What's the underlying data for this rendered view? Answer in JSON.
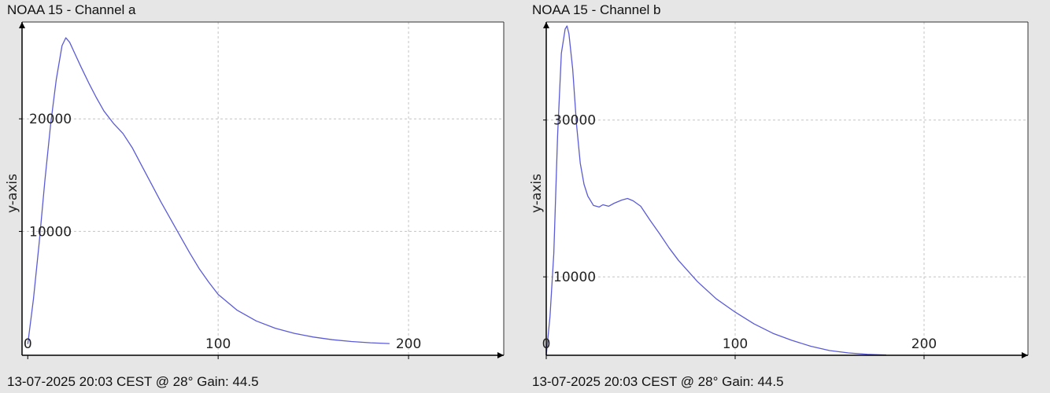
{
  "chart_data": [
    {
      "type": "line",
      "title": "NOAA 15 - Channel a",
      "footer": "13-07-2025 20:03 CEST @ 28° Gain: 44.5",
      "xlabel": "",
      "ylabel": "y-axis",
      "xlim": [
        -3,
        250
      ],
      "ylim": [
        -1000,
        28600
      ],
      "xticks": [
        0,
        100,
        200
      ],
      "yticks": [
        10000,
        20000
      ],
      "grid": true,
      "legend": "none",
      "color": "#5b5bd6",
      "series": [
        {
          "x": [
            0,
            3,
            6,
            9,
            12,
            15,
            18,
            20,
            22,
            25,
            28,
            32,
            36,
            40,
            45,
            50,
            55,
            60,
            65,
            70,
            75,
            80,
            85,
            90,
            95,
            100,
            110,
            120,
            130,
            140,
            150,
            160,
            170,
            180,
            190
          ],
          "y": [
            0,
            4000,
            9000,
            14500,
            19500,
            23500,
            26500,
            27200,
            26800,
            25700,
            24600,
            23200,
            21900,
            20700,
            19600,
            18700,
            17400,
            15800,
            14200,
            12600,
            11100,
            9600,
            8100,
            6700,
            5500,
            4400,
            3000,
            2050,
            1400,
            950,
            620,
            380,
            220,
            110,
            40
          ]
        }
      ]
    },
    {
      "type": "line",
      "title": "NOAA 15 - Channel b",
      "footer": "13-07-2025 20:03 CEST @ 28° Gain: 44.5",
      "xlabel": "",
      "ylabel": "y-axis",
      "xlim": [
        0,
        255
      ],
      "ylim": [
        0,
        42500
      ],
      "xticks": [
        0,
        100,
        200
      ],
      "yticks": [
        10000,
        30000
      ],
      "grid": true,
      "legend": "none",
      "color": "#5b5bd6",
      "series": [
        {
          "x": [
            0,
            2,
            4,
            6,
            8,
            10,
            11,
            12,
            14,
            16,
            18,
            20,
            22,
            25,
            28,
            30,
            33,
            36,
            40,
            43,
            46,
            50,
            55,
            60,
            65,
            70,
            80,
            90,
            100,
            110,
            120,
            130,
            140,
            150,
            160,
            170,
            180
          ],
          "y": [
            0,
            5000,
            13000,
            28000,
            38500,
            41600,
            42000,
            41000,
            36500,
            29500,
            24500,
            21800,
            20300,
            19100,
            18900,
            19200,
            19000,
            19400,
            19800,
            20000,
            19700,
            19000,
            17200,
            15500,
            13700,
            12100,
            9400,
            7200,
            5500,
            4000,
            2800,
            1900,
            1150,
            600,
            300,
            120,
            40
          ]
        }
      ]
    }
  ]
}
